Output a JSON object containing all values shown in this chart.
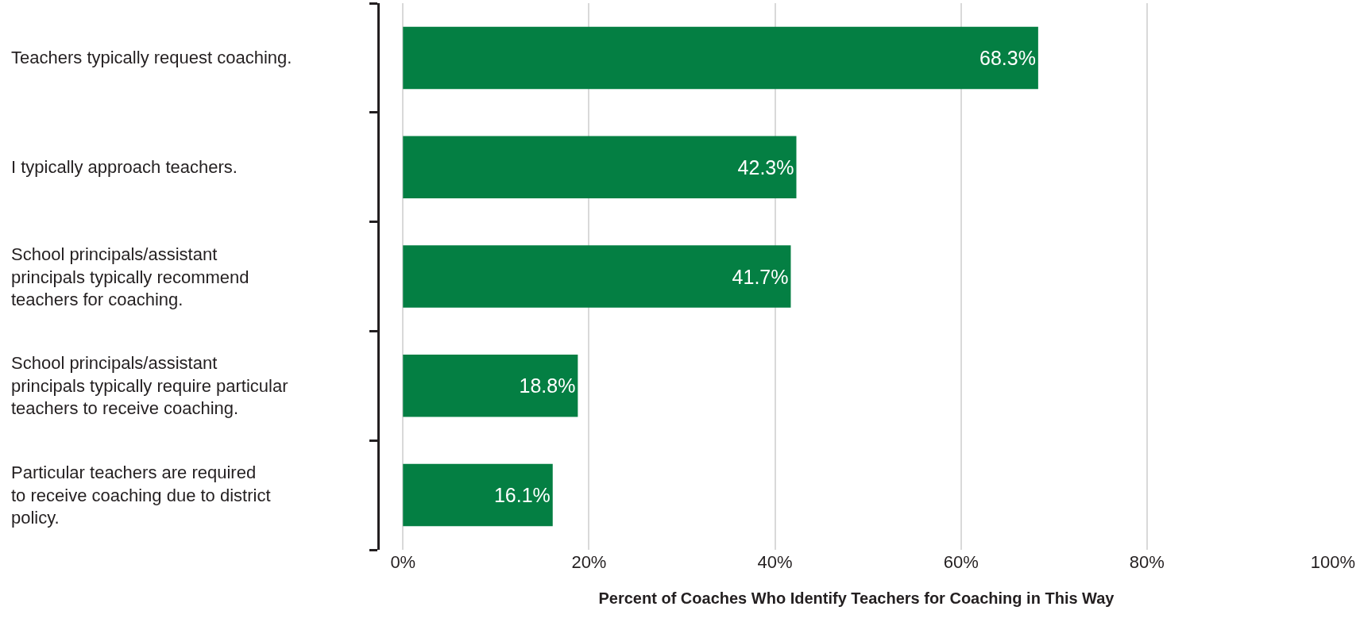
{
  "chart_data": {
    "type": "bar",
    "orientation": "horizontal",
    "categories": [
      "Teachers typically request coaching.",
      "I typically approach teachers.",
      "School principals/assistant\nprincipals typically recommend\nteachers for coaching.",
      "School principals/assistant\nprincipals typically require particular\nteachers to receive coaching.",
      "Particular teachers are required\nto receive coaching due to district\npolicy."
    ],
    "values": [
      68.3,
      42.3,
      41.7,
      18.8,
      16.1
    ],
    "color": "#047f43",
    "value_labels": [
      "68.3%",
      "42.3%",
      "41.7%",
      "18.8%",
      "16.1%"
    ],
    "xlabel": "Percent of Coaches Who Identify Teachers for Coaching in This Way",
    "xlim": [
      -2.5,
      100
    ],
    "xticks": [
      {
        "value": 0,
        "label": "0%"
      },
      {
        "value": 20,
        "label": "20%"
      },
      {
        "value": 40,
        "label": "40%"
      },
      {
        "value": 60,
        "label": "60%"
      },
      {
        "value": 80,
        "label": "80%"
      },
      {
        "value": 100,
        "label": "100%"
      }
    ],
    "grid": "x"
  }
}
